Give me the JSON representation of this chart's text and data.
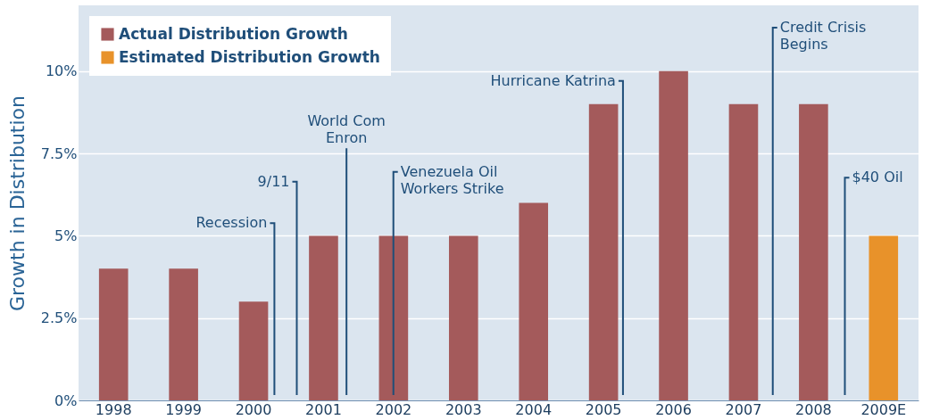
{
  "chart_data": {
    "type": "bar",
    "ylabel": "Growth in Distribution",
    "categories": [
      "1998",
      "1999",
      "2000",
      "2001",
      "2002",
      "2003",
      "2004",
      "2005",
      "2006",
      "2007",
      "2008",
      "2009E"
    ],
    "series": [
      {
        "name": "Actual Distribution Growth",
        "color": "#a45a5b",
        "values": [
          4,
          4,
          3,
          5,
          5,
          5,
          6,
          9,
          10,
          9,
          9,
          null
        ]
      },
      {
        "name": "Estimated Distribution Growth",
        "color": "#e8922a",
        "values": [
          null,
          null,
          null,
          null,
          null,
          null,
          null,
          null,
          null,
          null,
          null,
          5
        ]
      }
    ],
    "ylim": [
      0,
      12
    ],
    "yticks": [
      {
        "value": 0,
        "label": "0%"
      },
      {
        "value": 2.5,
        "label": "2.5%"
      },
      {
        "value": 5,
        "label": "5%"
      },
      {
        "value": 7.5,
        "label": "7.5%"
      },
      {
        "value": 10,
        "label": "10%"
      }
    ],
    "grid": "y",
    "legend": "top left",
    "annotations": [
      "Recession",
      "9/11",
      "World Com\nEnron",
      "Venezuela Oil\nWorkers Strike",
      "Hurricane Katrina",
      "Credit Crisis\nBegins",
      "$40 Oil"
    ]
  }
}
